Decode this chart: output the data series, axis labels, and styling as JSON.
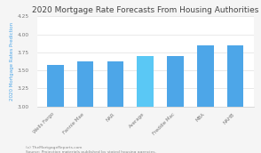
{
  "title": "2020 Mortgage Rate Forecasts From Housing Authorities",
  "ylabel": "2020 Mortgage Rates Prediction",
  "categories": [
    "Wells Fargo",
    "Fannie Mae",
    "NAR",
    "Average",
    "Freddie Mac",
    "MBA",
    "NAHB"
  ],
  "values": [
    3.57,
    3.63,
    3.63,
    3.7,
    3.7,
    3.85,
    3.85
  ],
  "bar_colors": [
    "#4da6e8",
    "#4da6e8",
    "#4da6e8",
    "#5ac8f5",
    "#4da6e8",
    "#4da6e8",
    "#4da6e8"
  ],
  "ylim": [
    3.0,
    4.25
  ],
  "yticks": [
    3.0,
    3.25,
    3.5,
    3.75,
    4.0,
    4.25
  ],
  "footnote1": "(c) TheMortgageReports.com",
  "footnote2": "Source: Projection materials published by stated housing agencies.",
  "title_color": "#444444",
  "ylabel_color": "#4da6e8",
  "grid_color": "#e0e0e0",
  "background_color": "#f5f5f5",
  "plot_bg_color": "#ffffff",
  "title_fontsize": 6.5,
  "label_fontsize": 4.0,
  "tick_fontsize": 4.2,
  "footnote_fontsize": 3.2,
  "bar_width": 0.55
}
